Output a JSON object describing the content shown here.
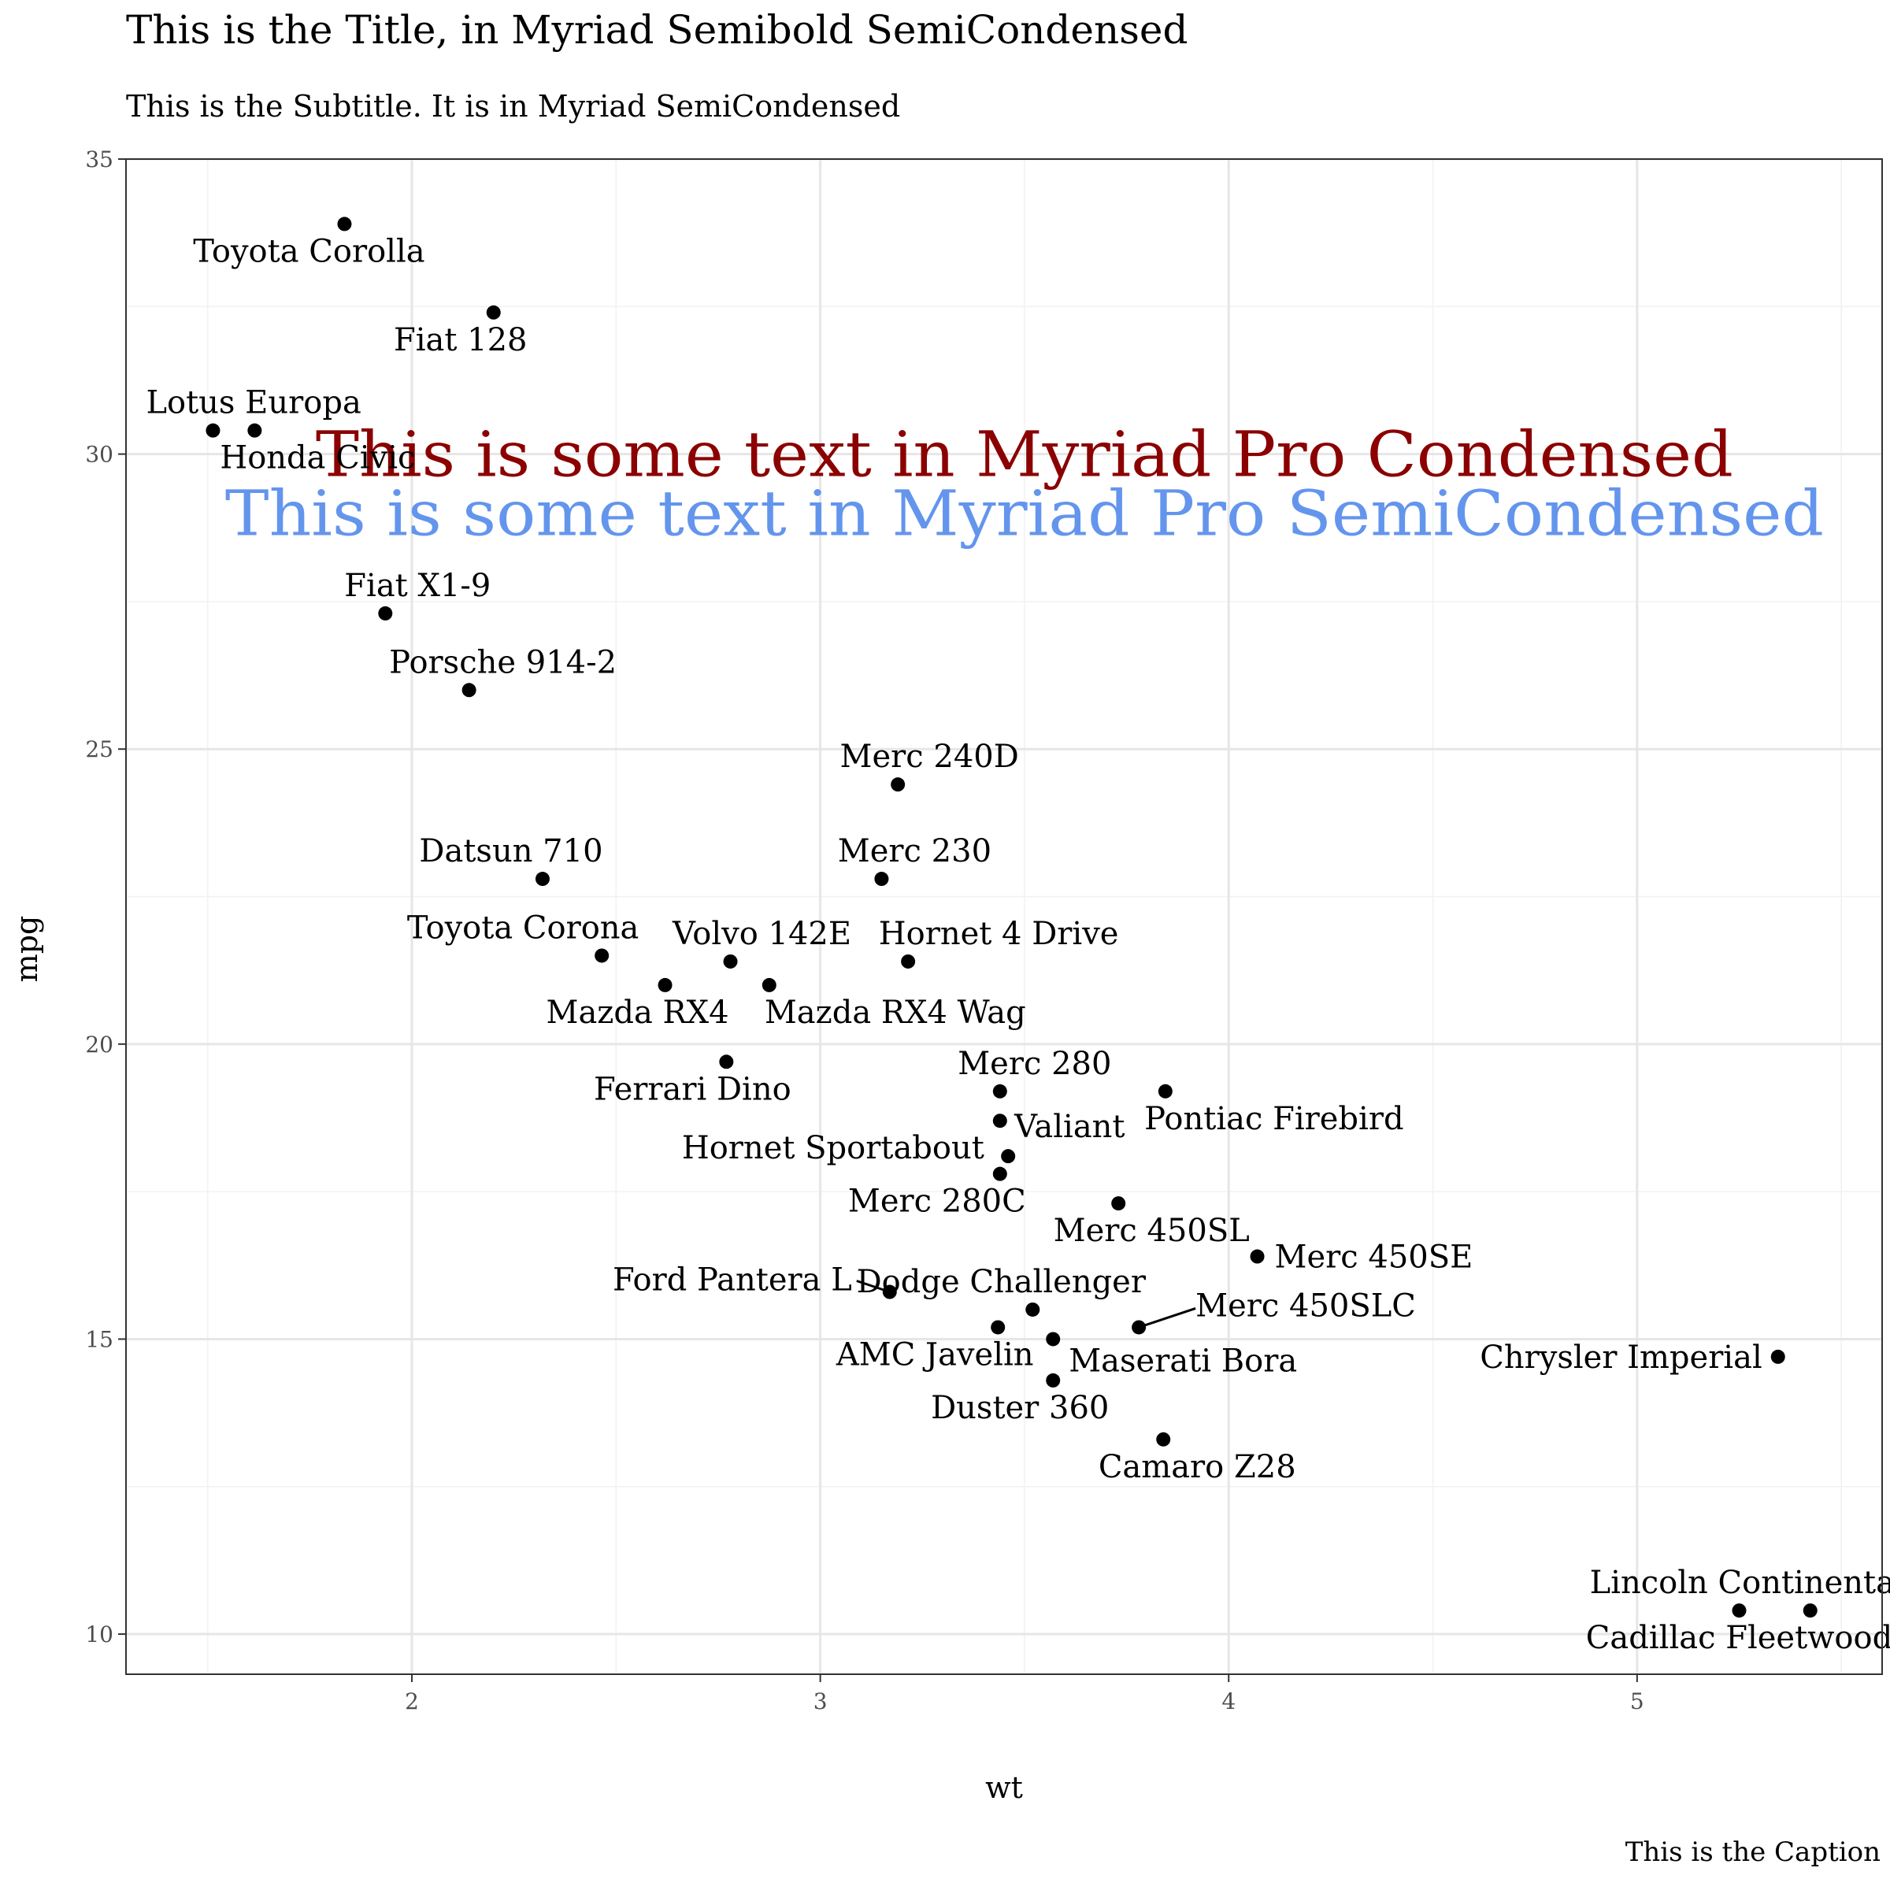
{
  "title": "This is the Title, in Myriad Semibold SemiCondensed",
  "subtitle": "This is the Subtitle. It is in Myriad SemiCondensed",
  "caption": "This is the Caption",
  "chart_data": {
    "type": "scatter",
    "xlabel": "wt",
    "ylabel": "mpg",
    "xlim": [
      1.3,
      5.6
    ],
    "ylim": [
      9.3,
      35
    ],
    "xticks": [
      2,
      3,
      4,
      5
    ],
    "yticks": [
      10,
      15,
      20,
      25,
      30,
      35
    ],
    "grid": true,
    "point_color": "#000000",
    "points": [
      {
        "label": "Mazda RX4",
        "x": 2.62,
        "y": 21.0
      },
      {
        "label": "Mazda RX4 Wag",
        "x": 2.875,
        "y": 21.0
      },
      {
        "label": "Datsun 710",
        "x": 2.32,
        "y": 22.8
      },
      {
        "label": "Hornet 4 Drive",
        "x": 3.215,
        "y": 21.4
      },
      {
        "label": "Hornet Sportabout",
        "x": 3.44,
        "y": 18.7
      },
      {
        "label": "Valiant",
        "x": 3.46,
        "y": 18.1
      },
      {
        "label": "Duster 360",
        "x": 3.57,
        "y": 14.3
      },
      {
        "label": "Merc 240D",
        "x": 3.19,
        "y": 24.4
      },
      {
        "label": "Merc 230",
        "x": 3.15,
        "y": 22.8
      },
      {
        "label": "Merc 280",
        "x": 3.44,
        "y": 19.2
      },
      {
        "label": "Merc 280C",
        "x": 3.44,
        "y": 17.8
      },
      {
        "label": "Merc 450SE",
        "x": 4.07,
        "y": 16.4
      },
      {
        "label": "Merc 450SL",
        "x": 3.73,
        "y": 17.3
      },
      {
        "label": "Merc 450SLC",
        "x": 3.78,
        "y": 15.2
      },
      {
        "label": "Cadillac Fleetwood",
        "x": 5.25,
        "y": 10.4
      },
      {
        "label": "Lincoln Continental",
        "x": 5.424,
        "y": 10.4
      },
      {
        "label": "Chrysler Imperial",
        "x": 5.345,
        "y": 14.7
      },
      {
        "label": "Fiat 128",
        "x": 2.2,
        "y": 32.4
      },
      {
        "label": "Honda Civic",
        "x": 1.615,
        "y": 30.4
      },
      {
        "label": "Toyota Corolla",
        "x": 1.835,
        "y": 33.9
      },
      {
        "label": "Toyota Corona",
        "x": 2.465,
        "y": 21.5
      },
      {
        "label": "Dodge Challenger",
        "x": 3.52,
        "y": 15.5
      },
      {
        "label": "AMC Javelin",
        "x": 3.435,
        "y": 15.2
      },
      {
        "label": "Camaro Z28",
        "x": 3.84,
        "y": 13.3
      },
      {
        "label": "Pontiac Firebird",
        "x": 3.845,
        "y": 19.2
      },
      {
        "label": "Fiat X1-9",
        "x": 1.935,
        "y": 27.3
      },
      {
        "label": "Porsche 914-2",
        "x": 2.14,
        "y": 26.0
      },
      {
        "label": "Lotus Europa",
        "x": 1.513,
        "y": 30.4
      },
      {
        "label": "Ford Pantera L",
        "x": 3.17,
        "y": 15.8
      },
      {
        "label": "Ferrari Dino",
        "x": 2.77,
        "y": 19.7
      },
      {
        "label": "Maserati Bora",
        "x": 3.57,
        "y": 15.0
      },
      {
        "label": "Volvo 142E",
        "x": 2.78,
        "y": 21.4
      }
    ],
    "annotations": [
      {
        "text": "This is some text in Myriad Pro Condensed",
        "x": 3.5,
        "y": 30.0,
        "color": "#8b0000"
      },
      {
        "text": "This is some text in Myriad Pro SemiCondensed",
        "x": 3.5,
        "y": 29.0,
        "color": "#6495ed"
      }
    ]
  }
}
